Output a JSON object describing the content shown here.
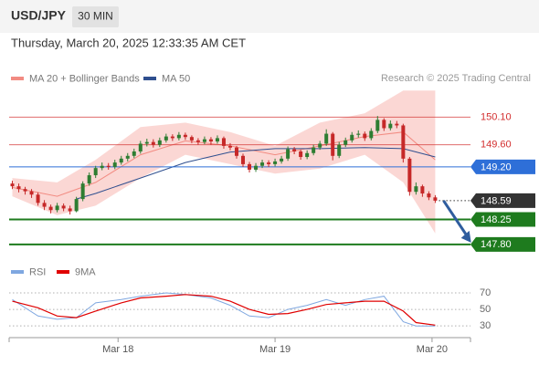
{
  "header": {
    "timeframe": "30 MIN",
    "datetime": "Thursday, March 20, 2025 12:33:35 AM CET",
    "credit": "Research © 2025 Trading Central"
  },
  "chart_data": [
    {
      "type": "candlestick",
      "title": "USD/JPY",
      "xlim": [
        -0.5,
        71.5
      ],
      "ylim": [
        147.55,
        150.65
      ],
      "up_color": "#2e7d32",
      "down_color": "#c62828",
      "open": [
        148.9,
        148.85,
        148.8,
        148.76,
        148.7,
        148.55,
        148.48,
        148.42,
        148.5,
        148.45,
        148.4,
        148.62,
        148.9,
        149.05,
        149.18,
        149.22,
        149.2,
        149.28,
        149.35,
        149.4,
        149.48,
        149.62,
        149.65,
        149.6,
        149.68,
        149.75,
        149.72,
        149.78,
        149.74,
        149.68,
        149.65,
        149.7,
        149.66,
        149.72,
        149.58,
        149.55,
        149.4,
        149.25,
        149.15,
        149.22,
        149.28,
        149.25,
        149.3,
        149.35,
        149.52,
        149.48,
        149.38,
        149.45,
        149.55,
        149.62,
        149.8,
        149.4,
        149.6,
        149.68,
        149.78,
        149.8,
        149.72,
        149.85,
        150.05,
        149.9,
        149.98,
        149.95,
        149.35,
        148.75,
        148.85,
        148.72,
        148.65
      ],
      "high": [
        148.95,
        148.9,
        148.84,
        148.8,
        148.74,
        148.6,
        148.52,
        148.55,
        148.54,
        148.5,
        148.66,
        148.94,
        149.1,
        149.22,
        149.28,
        149.27,
        149.33,
        149.4,
        149.45,
        149.53,
        149.67,
        149.71,
        149.7,
        149.73,
        149.8,
        149.79,
        149.83,
        149.82,
        149.77,
        149.72,
        149.75,
        149.74,
        149.77,
        149.75,
        149.63,
        149.58,
        149.44,
        149.29,
        149.27,
        149.33,
        149.32,
        149.35,
        149.4,
        149.57,
        149.56,
        149.51,
        149.5,
        149.6,
        149.67,
        149.88,
        149.83,
        149.65,
        149.73,
        149.83,
        149.86,
        149.84,
        149.9,
        150.12,
        150.08,
        150.04,
        150.03,
        149.98,
        149.38,
        148.92,
        148.88,
        148.76,
        148.69
      ],
      "low": [
        148.8,
        148.74,
        148.7,
        148.64,
        148.5,
        148.42,
        148.36,
        148.38,
        148.4,
        148.34,
        148.38,
        148.58,
        148.86,
        149.0,
        149.14,
        149.15,
        149.16,
        149.24,
        149.3,
        149.36,
        149.44,
        149.57,
        149.55,
        149.56,
        149.64,
        149.67,
        149.68,
        149.69,
        149.63,
        149.6,
        149.61,
        149.6,
        149.62,
        149.53,
        149.5,
        149.35,
        149.2,
        149.1,
        149.11,
        149.18,
        149.2,
        149.21,
        149.26,
        149.31,
        149.43,
        149.33,
        149.34,
        149.41,
        149.51,
        149.58,
        149.32,
        149.36,
        149.56,
        149.64,
        149.73,
        149.67,
        149.68,
        149.81,
        149.85,
        149.86,
        149.9,
        149.28,
        148.68,
        148.7,
        148.66,
        148.6,
        148.55
      ],
      "close": [
        148.85,
        148.8,
        148.76,
        148.7,
        148.55,
        148.48,
        148.42,
        148.5,
        148.45,
        148.4,
        148.62,
        148.9,
        149.05,
        149.18,
        149.22,
        149.2,
        149.28,
        149.35,
        149.4,
        149.48,
        149.62,
        149.65,
        149.6,
        149.68,
        149.75,
        149.72,
        149.78,
        149.74,
        149.68,
        149.65,
        149.7,
        149.66,
        149.72,
        149.58,
        149.55,
        149.4,
        149.25,
        149.15,
        149.22,
        149.28,
        149.25,
        149.3,
        149.35,
        149.52,
        149.48,
        149.38,
        149.45,
        149.55,
        149.62,
        149.8,
        149.4,
        149.6,
        149.68,
        149.78,
        149.8,
        149.72,
        149.85,
        150.05,
        149.9,
        149.98,
        149.95,
        149.35,
        148.75,
        148.85,
        148.72,
        148.65,
        148.59
      ],
      "overlays": [
        {
          "name": "MA 20 + Bollinger Bands",
          "color": "#f28b82",
          "band_color": "#f9c9c6",
          "x": [
            0,
            7,
            13,
            20,
            27,
            34,
            41,
            48,
            55,
            61,
            66
          ],
          "values": [
            148.83,
            148.67,
            148.92,
            149.42,
            149.67,
            149.58,
            149.42,
            149.58,
            149.75,
            149.83,
            149.33
          ],
          "upper": [
            149.0,
            148.92,
            149.33,
            149.92,
            150.0,
            149.83,
            149.58,
            150.0,
            150.17,
            150.58,
            150.58
          ],
          "lower": [
            148.67,
            148.33,
            148.5,
            149.0,
            149.42,
            149.25,
            149.08,
            149.17,
            149.42,
            148.92,
            148.0
          ]
        },
        {
          "name": "MA 50",
          "color": "#2f4f8f",
          "x": [
            10,
            13,
            20,
            27,
            34,
            41,
            48,
            55,
            61,
            66
          ],
          "values": [
            148.62,
            148.72,
            149.0,
            149.28,
            149.47,
            149.53,
            149.53,
            149.55,
            149.53,
            149.38
          ]
        }
      ],
      "levels": [
        {
          "value": 150.1,
          "label": "150.10",
          "kind": "resistance",
          "color": "#d32f2f"
        },
        {
          "value": 149.6,
          "label": "149.60",
          "kind": "resistance",
          "color": "#d32f2f"
        },
        {
          "value": 149.2,
          "label": "149.20",
          "kind": "pivot",
          "color": "#2e6fd8"
        },
        {
          "value": 148.59,
          "kind": "last",
          "color": "#333333"
        },
        {
          "value": 148.25,
          "kind": "support",
          "color": "#1e7b1e"
        },
        {
          "value": 147.8,
          "label": "147.80",
          "kind": "support",
          "color": "#1e7b1e"
        }
      ]
    },
    {
      "type": "line",
      "xlim": [
        -0.5,
        71.5
      ],
      "ylim": [
        18,
        80
      ],
      "yticks": [
        70,
        50,
        30
      ],
      "xticks": [
        {
          "value": 16.5,
          "label": "Mar 18"
        },
        {
          "value": 41,
          "label": "Mar 19"
        },
        {
          "value": 65.5,
          "label": "Mar 20"
        }
      ],
      "series": [
        {
          "name": "RSI",
          "color": "#7fa7e0",
          "x": [
            0,
            4,
            7,
            10,
            13,
            17,
            20,
            24,
            27,
            31,
            34,
            37,
            40,
            43,
            46,
            49,
            52,
            55,
            58,
            61,
            63,
            66
          ],
          "values": [
            62,
            42,
            38,
            40,
            58,
            62,
            66,
            70,
            68,
            64,
            55,
            42,
            40,
            50,
            55,
            62,
            55,
            62,
            66,
            35,
            30,
            30
          ]
        },
        {
          "name": "9MA",
          "color": "#e00000",
          "x": [
            0,
            4,
            7,
            10,
            13,
            17,
            20,
            24,
            27,
            31,
            34,
            37,
            40,
            43,
            46,
            49,
            52,
            55,
            58,
            61,
            63,
            66
          ],
          "values": [
            60,
            52,
            42,
            40,
            48,
            58,
            64,
            66,
            68,
            66,
            60,
            50,
            44,
            45,
            50,
            56,
            58,
            60,
            60,
            48,
            34,
            31
          ]
        }
      ]
    }
  ]
}
